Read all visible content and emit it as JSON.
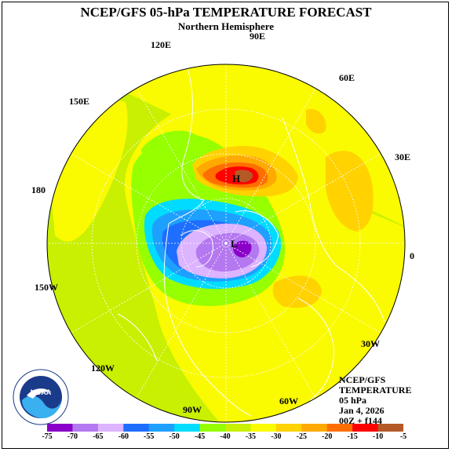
{
  "title": "NCEP/GFS 05-hPa TEMPERATURE FORECAST",
  "subtitle": "Northern Hemisphere",
  "longitude_labels": [
    "90E",
    "120E",
    "60E",
    "150E",
    "30E",
    "180",
    "0",
    "150W",
    "30W",
    "120W",
    "90W",
    "60W"
  ],
  "markers": {
    "high": "H",
    "low": "L"
  },
  "info": {
    "line1": "NCEP/GFS",
    "line2": "TEMPERATURE",
    "line3": "05 hPa",
    "line4": "Jan 4, 2026",
    "line5": "00Z + f144"
  },
  "colorbar": {
    "ticks": [
      "-75",
      "-70",
      "-65",
      "-60",
      "-55",
      "-50",
      "-45",
      "-40",
      "-35",
      "-30",
      "-25",
      "-20",
      "-15",
      "-10",
      "-5"
    ],
    "colors": [
      "#8a00c8",
      "#b478f0",
      "#dcb4ff",
      "#1e6eff",
      "#1ea0ff",
      "#00dcff",
      "#96ff00",
      "#c8f000",
      "#fafa00",
      "#ffd200",
      "#ffaa00",
      "#ff6e00",
      "#ff0000",
      "#b45a28",
      "#808080"
    ]
  },
  "logo": {
    "text": "NOAA",
    "icon": "noaa-logo-icon"
  }
}
